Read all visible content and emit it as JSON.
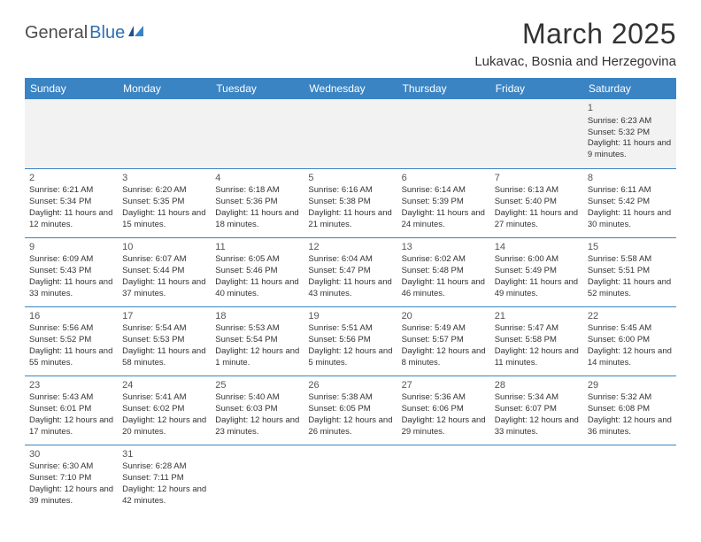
{
  "logo": {
    "textDark": "General",
    "textBlue": "Blue"
  },
  "title": "March 2025",
  "location": "Lukavac, Bosnia and Herzegovina",
  "weekdays": [
    "Sunday",
    "Monday",
    "Tuesday",
    "Wednesday",
    "Thursday",
    "Friday",
    "Saturday"
  ],
  "colors": {
    "headerBg": "#3a84c4",
    "headerText": "#ffffff",
    "rowBorder": "#3a84c4",
    "firstWeekBg": "#f2f2f2",
    "logoBlue": "#2f6fb0",
    "textColor": "#333333"
  },
  "typography": {
    "titleFontSize": 32,
    "locationFontSize": 15,
    "weekdayFontSize": 12,
    "cellFontSize": 9.5,
    "dayNumFontSize": 11
  },
  "weeks": [
    [
      null,
      null,
      null,
      null,
      null,
      null,
      {
        "d": "1",
        "sr": "Sunrise: 6:23 AM",
        "ss": "Sunset: 5:32 PM",
        "dl": "Daylight: 11 hours and 9 minutes."
      }
    ],
    [
      {
        "d": "2",
        "sr": "Sunrise: 6:21 AM",
        "ss": "Sunset: 5:34 PM",
        "dl": "Daylight: 11 hours and 12 minutes."
      },
      {
        "d": "3",
        "sr": "Sunrise: 6:20 AM",
        "ss": "Sunset: 5:35 PM",
        "dl": "Daylight: 11 hours and 15 minutes."
      },
      {
        "d": "4",
        "sr": "Sunrise: 6:18 AM",
        "ss": "Sunset: 5:36 PM",
        "dl": "Daylight: 11 hours and 18 minutes."
      },
      {
        "d": "5",
        "sr": "Sunrise: 6:16 AM",
        "ss": "Sunset: 5:38 PM",
        "dl": "Daylight: 11 hours and 21 minutes."
      },
      {
        "d": "6",
        "sr": "Sunrise: 6:14 AM",
        "ss": "Sunset: 5:39 PM",
        "dl": "Daylight: 11 hours and 24 minutes."
      },
      {
        "d": "7",
        "sr": "Sunrise: 6:13 AM",
        "ss": "Sunset: 5:40 PM",
        "dl": "Daylight: 11 hours and 27 minutes."
      },
      {
        "d": "8",
        "sr": "Sunrise: 6:11 AM",
        "ss": "Sunset: 5:42 PM",
        "dl": "Daylight: 11 hours and 30 minutes."
      }
    ],
    [
      {
        "d": "9",
        "sr": "Sunrise: 6:09 AM",
        "ss": "Sunset: 5:43 PM",
        "dl": "Daylight: 11 hours and 33 minutes."
      },
      {
        "d": "10",
        "sr": "Sunrise: 6:07 AM",
        "ss": "Sunset: 5:44 PM",
        "dl": "Daylight: 11 hours and 37 minutes."
      },
      {
        "d": "11",
        "sr": "Sunrise: 6:05 AM",
        "ss": "Sunset: 5:46 PM",
        "dl": "Daylight: 11 hours and 40 minutes."
      },
      {
        "d": "12",
        "sr": "Sunrise: 6:04 AM",
        "ss": "Sunset: 5:47 PM",
        "dl": "Daylight: 11 hours and 43 minutes."
      },
      {
        "d": "13",
        "sr": "Sunrise: 6:02 AM",
        "ss": "Sunset: 5:48 PM",
        "dl": "Daylight: 11 hours and 46 minutes."
      },
      {
        "d": "14",
        "sr": "Sunrise: 6:00 AM",
        "ss": "Sunset: 5:49 PM",
        "dl": "Daylight: 11 hours and 49 minutes."
      },
      {
        "d": "15",
        "sr": "Sunrise: 5:58 AM",
        "ss": "Sunset: 5:51 PM",
        "dl": "Daylight: 11 hours and 52 minutes."
      }
    ],
    [
      {
        "d": "16",
        "sr": "Sunrise: 5:56 AM",
        "ss": "Sunset: 5:52 PM",
        "dl": "Daylight: 11 hours and 55 minutes."
      },
      {
        "d": "17",
        "sr": "Sunrise: 5:54 AM",
        "ss": "Sunset: 5:53 PM",
        "dl": "Daylight: 11 hours and 58 minutes."
      },
      {
        "d": "18",
        "sr": "Sunrise: 5:53 AM",
        "ss": "Sunset: 5:54 PM",
        "dl": "Daylight: 12 hours and 1 minute."
      },
      {
        "d": "19",
        "sr": "Sunrise: 5:51 AM",
        "ss": "Sunset: 5:56 PM",
        "dl": "Daylight: 12 hours and 5 minutes."
      },
      {
        "d": "20",
        "sr": "Sunrise: 5:49 AM",
        "ss": "Sunset: 5:57 PM",
        "dl": "Daylight: 12 hours and 8 minutes."
      },
      {
        "d": "21",
        "sr": "Sunrise: 5:47 AM",
        "ss": "Sunset: 5:58 PM",
        "dl": "Daylight: 12 hours and 11 minutes."
      },
      {
        "d": "22",
        "sr": "Sunrise: 5:45 AM",
        "ss": "Sunset: 6:00 PM",
        "dl": "Daylight: 12 hours and 14 minutes."
      }
    ],
    [
      {
        "d": "23",
        "sr": "Sunrise: 5:43 AM",
        "ss": "Sunset: 6:01 PM",
        "dl": "Daylight: 12 hours and 17 minutes."
      },
      {
        "d": "24",
        "sr": "Sunrise: 5:41 AM",
        "ss": "Sunset: 6:02 PM",
        "dl": "Daylight: 12 hours and 20 minutes."
      },
      {
        "d": "25",
        "sr": "Sunrise: 5:40 AM",
        "ss": "Sunset: 6:03 PM",
        "dl": "Daylight: 12 hours and 23 minutes."
      },
      {
        "d": "26",
        "sr": "Sunrise: 5:38 AM",
        "ss": "Sunset: 6:05 PM",
        "dl": "Daylight: 12 hours and 26 minutes."
      },
      {
        "d": "27",
        "sr": "Sunrise: 5:36 AM",
        "ss": "Sunset: 6:06 PM",
        "dl": "Daylight: 12 hours and 29 minutes."
      },
      {
        "d": "28",
        "sr": "Sunrise: 5:34 AM",
        "ss": "Sunset: 6:07 PM",
        "dl": "Daylight: 12 hours and 33 minutes."
      },
      {
        "d": "29",
        "sr": "Sunrise: 5:32 AM",
        "ss": "Sunset: 6:08 PM",
        "dl": "Daylight: 12 hours and 36 minutes."
      }
    ],
    [
      {
        "d": "30",
        "sr": "Sunrise: 6:30 AM",
        "ss": "Sunset: 7:10 PM",
        "dl": "Daylight: 12 hours and 39 minutes."
      },
      {
        "d": "31",
        "sr": "Sunrise: 6:28 AM",
        "ss": "Sunset: 7:11 PM",
        "dl": "Daylight: 12 hours and 42 minutes."
      },
      null,
      null,
      null,
      null,
      null
    ]
  ]
}
